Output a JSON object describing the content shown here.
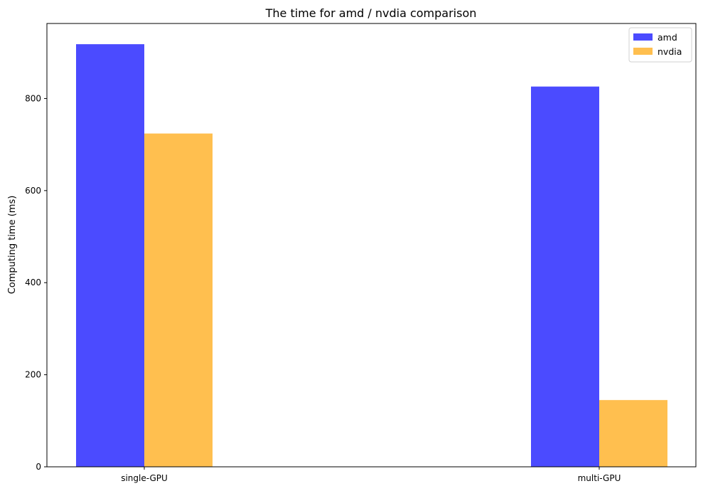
{
  "chart_data": {
    "type": "bar",
    "title": "The time for amd / nvdia comparison",
    "xlabel": "",
    "ylabel": "Computing time (ms)",
    "categories": [
      "single-GPU",
      "multi-GPU"
    ],
    "series": [
      {
        "name": "amd",
        "values": [
          918,
          826
        ],
        "color": "#4b4bff"
      },
      {
        "name": "nvdia",
        "values": [
          724,
          145
        ],
        "color": "#ffbf4f"
      }
    ],
    "ylim": [
      0,
      963
    ],
    "yticks": [
      0,
      200,
      400,
      600,
      800
    ],
    "grid": false,
    "legend": "top-right"
  }
}
